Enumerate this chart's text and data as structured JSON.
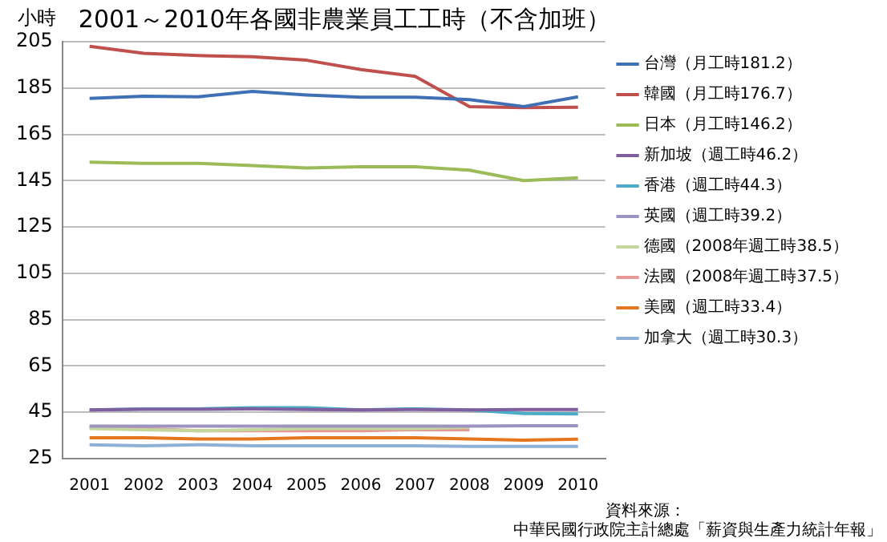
{
  "chart_data": {
    "type": "line",
    "title": "2001～2010年各國非農業員工工時（不含加班）",
    "ylabel": "小時",
    "categories": [
      "2001",
      "2002",
      "2003",
      "2004",
      "2005",
      "2006",
      "2007",
      "2008",
      "2009",
      "2010"
    ],
    "series": [
      {
        "name": "台灣（月工時181.2）",
        "color": "#3f6fb5",
        "values": [
          180.5,
          181.5,
          181.2,
          183.5,
          182,
          181,
          181,
          180,
          177,
          181.2
        ]
      },
      {
        "name": "韓國（月工時176.7）",
        "color": "#c0504d",
        "values": [
          203,
          200,
          199,
          198.5,
          197,
          193,
          190,
          177,
          176.5,
          176.7
        ]
      },
      {
        "name": "日本（月工時146.2）",
        "color": "#9bbb59",
        "values": [
          153,
          152.5,
          152.5,
          151.5,
          150.5,
          151,
          151,
          149.5,
          145,
          146.2
        ]
      },
      {
        "name": "新加坡（週工時46.2）",
        "color": "#7f5f9f",
        "values": [
          46,
          46.3,
          46.3,
          46.5,
          46.2,
          46,
          46.2,
          46,
          46.2,
          46.2
        ]
      },
      {
        "name": "香港（週工時44.3）",
        "color": "#4bacc6",
        "values": [
          46,
          46.5,
          46.5,
          47,
          47,
          46,
          46.5,
          46,
          44.5,
          44.3
        ]
      },
      {
        "name": "英國（週工時39.2）",
        "color": "#9d93c0",
        "values": [
          39,
          39,
          39,
          39,
          39,
          39,
          39,
          39,
          39.2,
          39.2
        ]
      },
      {
        "name": "德國（2008年週工時38.5）",
        "color": "#c3d69b",
        "values": [
          38,
          37.5,
          37,
          37.5,
          38,
          38,
          38,
          38.5,
          null,
          null
        ]
      },
      {
        "name": "法國（2008年週工時37.5）",
        "color": "#e59896",
        "values": [
          38.5,
          38,
          37,
          37,
          37,
          37,
          37.5,
          37.5,
          null,
          null
        ]
      },
      {
        "name": "美國（週工時33.4）",
        "color": "#e3761f",
        "values": [
          34,
          34,
          33.5,
          33.5,
          34,
          34,
          34,
          33.5,
          33,
          33.4
        ]
      },
      {
        "name": "加拿大（週工時30.3）",
        "color": "#8fb0d6",
        "values": [
          31,
          30.5,
          31,
          30.5,
          30.5,
          30.5,
          30.5,
          30.3,
          30.3,
          30.3
        ]
      }
    ],
    "ylim": [
      25,
      205
    ],
    "yticks": [
      25,
      45,
      65,
      85,
      105,
      125,
      145,
      165,
      185,
      205
    ],
    "grid": "y",
    "legend": "right",
    "marker": "none",
    "line_style": "solid",
    "annotations": [
      "資料來源：",
      "中華民國行政院主計總處「薪資與生產力統計年報」"
    ]
  }
}
